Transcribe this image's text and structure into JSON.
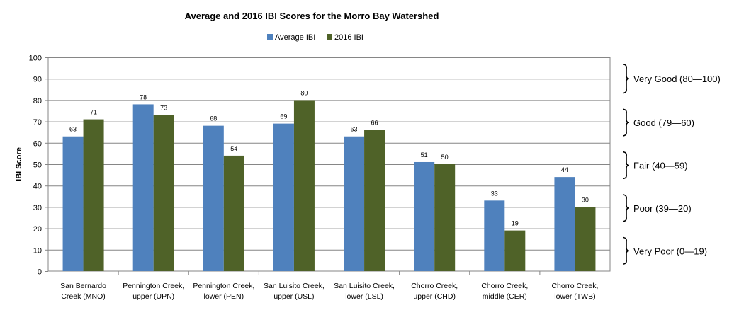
{
  "chart_data": {
    "type": "bar",
    "title": "Average and 2016 IBI Scores for the Morro Bay Watershed",
    "xlabel": "",
    "ylabel": "IBI Score",
    "ylim": [
      0,
      100
    ],
    "yticks": [
      0,
      10,
      20,
      30,
      40,
      50,
      60,
      70,
      80,
      90,
      100
    ],
    "grid": true,
    "legend_position": "top-center",
    "categories": [
      [
        "San Bernardo",
        "Creek (MNO)"
      ],
      [
        "Pennington Creek,",
        "upper (UPN)"
      ],
      [
        "Pennington Creek,",
        "lower (PEN)"
      ],
      [
        "San Luisito Creek,",
        "upper (USL)"
      ],
      [
        "San Luisito Creek,",
        "lower (LSL)"
      ],
      [
        "Chorro Creek,",
        "upper (CHD)"
      ],
      [
        "Chorro Creek,",
        "middle (CER)"
      ],
      [
        "Chorro Creek,",
        "lower (TWB)"
      ]
    ],
    "series": [
      {
        "name": "Average IBI",
        "color": "#4f81bd",
        "values": [
          63,
          78,
          68,
          69,
          63,
          51,
          33,
          44
        ]
      },
      {
        "name": "2016 IBI",
        "color": "#4f6228",
        "values": [
          71,
          73,
          54,
          80,
          66,
          50,
          19,
          30
        ]
      }
    ],
    "annotations": [
      {
        "label": "Very Good (80—100)",
        "from": 80,
        "to": 100
      },
      {
        "label": "Good (79—60)",
        "from": 60,
        "to": 79
      },
      {
        "label": "Fair (40—59)",
        "from": 40,
        "to": 59
      },
      {
        "label": "Poor (39—20)",
        "from": 20,
        "to": 39
      },
      {
        "label": "Very Poor (0—19)",
        "from": 0,
        "to": 19
      }
    ]
  }
}
